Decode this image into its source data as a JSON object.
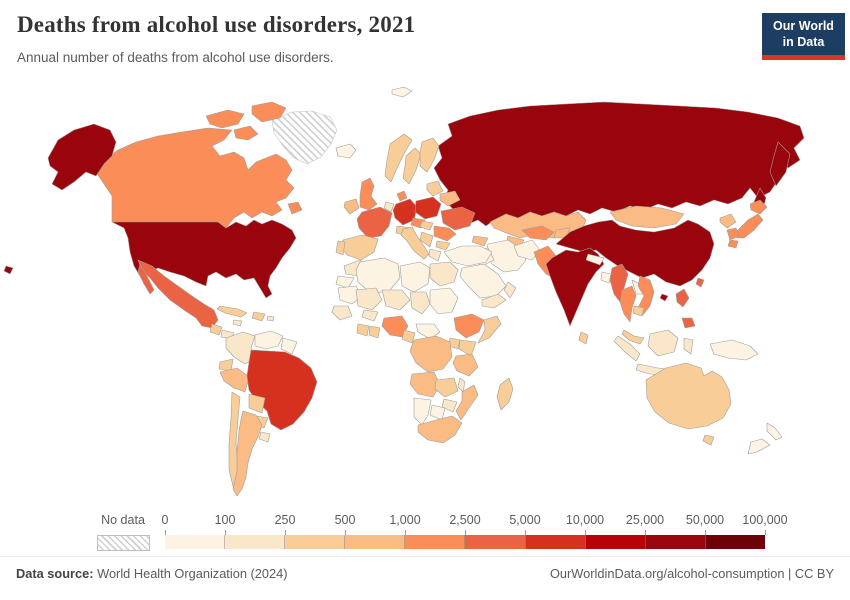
{
  "header": {
    "title": "Deaths from alcohol use disorders, 2021",
    "subtitle": "Annual number of deaths from alcohol use disorders.",
    "logo": {
      "line1": "Our World",
      "line2": "in Data",
      "bg_color": "#1d3d63",
      "accent_color": "#d8352a"
    }
  },
  "chart_data": {
    "type": "heatmap",
    "subtype": "choropleth-world-map",
    "title": "Deaths from alcohol use disorders, 2021",
    "year": "2021",
    "unit": "annual number of deaths",
    "legend": {
      "no_data_label": "No data",
      "tick_labels": [
        "0",
        "100",
        "250",
        "500",
        "1,000",
        "2,500",
        "5,000",
        "10,000",
        "25,000",
        "50,000",
        "100,000"
      ],
      "colors": [
        "#fdf3e3",
        "#fae6c8",
        "#f9cd97",
        "#fbbb84",
        "#fb8d59",
        "#eb6345",
        "#d6301f",
        "#b90109",
        "#9a040c",
        "#6d0009"
      ],
      "bin_meaning": "bin i spans tick_labels[i] to tick_labels[i+1]; 'no-data' = hatched"
    },
    "regions": [
      {
        "id": "greenland",
        "bin": "no-data"
      },
      {
        "id": "canada",
        "bin": 4
      },
      {
        "id": "alaska",
        "bin": 8
      },
      {
        "id": "united-states",
        "bin": 8
      },
      {
        "id": "hawaii",
        "bin": 8
      },
      {
        "id": "mexico",
        "bin": 5
      },
      {
        "id": "guatemala",
        "bin": 2
      },
      {
        "id": "honduras",
        "bin": 1
      },
      {
        "id": "nicaragua",
        "bin": 2
      },
      {
        "id": "costa-rica-panama",
        "bin": 1
      },
      {
        "id": "cuba",
        "bin": 2
      },
      {
        "id": "hispaniola",
        "bin": 2
      },
      {
        "id": "jamaica",
        "bin": 1
      },
      {
        "id": "puerto-rico",
        "bin": 1
      },
      {
        "id": "colombia",
        "bin": 1
      },
      {
        "id": "venezuela",
        "bin": 0
      },
      {
        "id": "guyanas",
        "bin": 0
      },
      {
        "id": "ecuador",
        "bin": 2
      },
      {
        "id": "peru",
        "bin": 3
      },
      {
        "id": "brazil",
        "bin": 6
      },
      {
        "id": "bolivia",
        "bin": 2
      },
      {
        "id": "paraguay",
        "bin": 2
      },
      {
        "id": "chile",
        "bin": 2
      },
      {
        "id": "argentina",
        "bin": 3
      },
      {
        "id": "uruguay",
        "bin": 1
      },
      {
        "id": "iceland",
        "bin": 0
      },
      {
        "id": "svalbard",
        "bin": 0
      },
      {
        "id": "ireland",
        "bin": 3
      },
      {
        "id": "united-kingdom",
        "bin": 4
      },
      {
        "id": "norway",
        "bin": 2
      },
      {
        "id": "sweden",
        "bin": 2
      },
      {
        "id": "finland",
        "bin": 2
      },
      {
        "id": "denmark",
        "bin": 4
      },
      {
        "id": "benelux",
        "bin": 1
      },
      {
        "id": "germany",
        "bin": 6
      },
      {
        "id": "france",
        "bin": 5
      },
      {
        "id": "spain",
        "bin": 2
      },
      {
        "id": "portugal",
        "bin": 2
      },
      {
        "id": "italy",
        "bin": 2
      },
      {
        "id": "austria-switzerland",
        "bin": 2
      },
      {
        "id": "czechia",
        "bin": 4
      },
      {
        "id": "poland",
        "bin": 6
      },
      {
        "id": "baltics",
        "bin": 2
      },
      {
        "id": "belarus",
        "bin": 3
      },
      {
        "id": "ukraine",
        "bin": 5
      },
      {
        "id": "romania",
        "bin": 4
      },
      {
        "id": "hungary-slovakia",
        "bin": 2
      },
      {
        "id": "balkans",
        "bin": 2
      },
      {
        "id": "bulgaria",
        "bin": 2
      },
      {
        "id": "greece",
        "bin": 1
      },
      {
        "id": "turkey",
        "bin": 0
      },
      {
        "id": "levant",
        "bin": 0
      },
      {
        "id": "iraq",
        "bin": 0
      },
      {
        "id": "saudi-arabia",
        "bin": 0
      },
      {
        "id": "yemen",
        "bin": 1
      },
      {
        "id": "oman",
        "bin": 1
      },
      {
        "id": "iran",
        "bin": 0
      },
      {
        "id": "afghanistan",
        "bin": 0
      },
      {
        "id": "caucasus",
        "bin": 3
      },
      {
        "id": "russia",
        "bin": 8
      },
      {
        "id": "kazakhstan",
        "bin": 3
      },
      {
        "id": "uzbekistan",
        "bin": 4
      },
      {
        "id": "turkmenistan",
        "bin": 3
      },
      {
        "id": "kyrgyzstan-tajikistan",
        "bin": 3
      },
      {
        "id": "mongolia",
        "bin": 3
      },
      {
        "id": "china",
        "bin": 8
      },
      {
        "id": "taiwan",
        "bin": 5
      },
      {
        "id": "india",
        "bin": 8
      },
      {
        "id": "pakistan",
        "bin": 4
      },
      {
        "id": "nepal",
        "bin": 0
      },
      {
        "id": "bangladesh",
        "bin": 0
      },
      {
        "id": "sri-lanka",
        "bin": 2
      },
      {
        "id": "myanmar",
        "bin": 5
      },
      {
        "id": "thailand",
        "bin": 4
      },
      {
        "id": "laos",
        "bin": 0
      },
      {
        "id": "vietnam",
        "bin": 4
      },
      {
        "id": "cambodia",
        "bin": 2
      },
      {
        "id": "malaysia",
        "bin": 2
      },
      {
        "id": "indonesia",
        "bin": 1
      },
      {
        "id": "philippines",
        "bin": 5
      },
      {
        "id": "new-guinea",
        "bin": 0
      },
      {
        "id": "japan",
        "bin": 4
      },
      {
        "id": "south-korea",
        "bin": 4
      },
      {
        "id": "north-korea",
        "bin": 3
      },
      {
        "id": "australia",
        "bin": 2
      },
      {
        "id": "new-zealand",
        "bin": 0
      },
      {
        "id": "morocco",
        "bin": 1
      },
      {
        "id": "western-sahara",
        "bin": 0
      },
      {
        "id": "algeria",
        "bin": 0
      },
      {
        "id": "libya",
        "bin": 0
      },
      {
        "id": "egypt",
        "bin": 1
      },
      {
        "id": "mauritania",
        "bin": 0
      },
      {
        "id": "mali",
        "bin": 1
      },
      {
        "id": "niger",
        "bin": 1
      },
      {
        "id": "chad",
        "bin": 1
      },
      {
        "id": "sudan",
        "bin": 0
      },
      {
        "id": "senegal-guinea",
        "bin": 1
      },
      {
        "id": "burkina-faso",
        "bin": 1
      },
      {
        "id": "ivory-coast",
        "bin": 2
      },
      {
        "id": "ghana",
        "bin": 2
      },
      {
        "id": "nigeria",
        "bin": 4
      },
      {
        "id": "cameroon",
        "bin": 2
      },
      {
        "id": "central-african-republic",
        "bin": 0
      },
      {
        "id": "ethiopia",
        "bin": 4
      },
      {
        "id": "somalia",
        "bin": 2
      },
      {
        "id": "kenya",
        "bin": 2
      },
      {
        "id": "uganda",
        "bin": 2
      },
      {
        "id": "dr-congo",
        "bin": 3
      },
      {
        "id": "tanzania",
        "bin": 3
      },
      {
        "id": "angola",
        "bin": 3
      },
      {
        "id": "zambia",
        "bin": 2
      },
      {
        "id": "malawi",
        "bin": 1
      },
      {
        "id": "mozambique",
        "bin": 3
      },
      {
        "id": "zimbabwe",
        "bin": 1
      },
      {
        "id": "botswana",
        "bin": 0
      },
      {
        "id": "namibia",
        "bin": 0
      },
      {
        "id": "south-africa",
        "bin": 3
      },
      {
        "id": "madagascar",
        "bin": 2
      }
    ]
  },
  "footer": {
    "source_label": "Data source:",
    "source": "World Health Organization (2024)",
    "right_text": "OurWorldinData.org/alcohol-consumption | CC BY"
  }
}
